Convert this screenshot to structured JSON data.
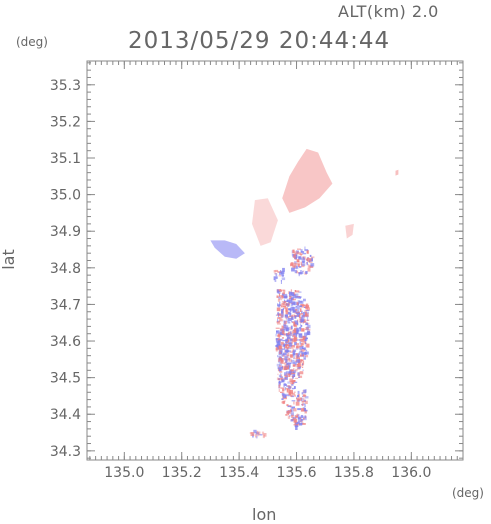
{
  "header": {
    "alt_label": "ALT(km) 2.0",
    "timestamp": "2013/05/29 20:44:44"
  },
  "chart_data": {
    "type": "heatmap",
    "title": "2013/05/29 20:44:44",
    "xlabel": "lon",
    "ylabel": "lat",
    "x_unit": "(deg)",
    "y_unit": "(deg)",
    "xlim": [
      134.87,
      136.18
    ],
    "ylim": [
      34.275,
      35.365
    ],
    "x_ticks": [
      "135.0",
      "135.2",
      "135.4",
      "135.6",
      "135.8",
      "136.0"
    ],
    "y_ticks": [
      "34.3",
      "34.4",
      "34.5",
      "34.6",
      "34.7",
      "34.8",
      "34.9",
      "35.0",
      "35.1",
      "35.2",
      "35.3"
    ],
    "grid": false,
    "colors": {
      "positive": "#f08080",
      "negative": "#8080f0",
      "axis": "#888888",
      "text": "#666666"
    },
    "regions": [
      {
        "sign": "positive",
        "intensity": 0.45,
        "points": [
          [
            135.605,
            35.09
          ],
          [
            135.635,
            35.125
          ],
          [
            135.675,
            35.115
          ],
          [
            135.705,
            35.06
          ],
          [
            135.725,
            35.03
          ],
          [
            135.68,
            34.99
          ],
          [
            135.63,
            34.965
          ],
          [
            135.575,
            34.95
          ],
          [
            135.55,
            34.99
          ],
          [
            135.575,
            35.05
          ]
        ]
      },
      {
        "sign": "positive",
        "intensity": 0.3,
        "points": [
          [
            135.455,
            34.985
          ],
          [
            135.5,
            34.99
          ],
          [
            135.535,
            34.93
          ],
          [
            135.51,
            34.87
          ],
          [
            135.475,
            34.86
          ],
          [
            135.445,
            34.92
          ]
        ]
      },
      {
        "sign": "positive",
        "intensity": 0.35,
        "points": [
          [
            135.77,
            34.915
          ],
          [
            135.8,
            34.92
          ],
          [
            135.795,
            34.89
          ],
          [
            135.775,
            34.88
          ]
        ]
      },
      {
        "sign": "positive",
        "intensity": 0.5,
        "points": [
          [
            135.945,
            35.065
          ],
          [
            135.955,
            35.068
          ],
          [
            135.955,
            35.055
          ],
          [
            135.945,
            35.052
          ]
        ]
      },
      {
        "sign": "negative",
        "intensity": 0.55,
        "points": [
          [
            135.3,
            34.875
          ],
          [
            135.35,
            34.875
          ],
          [
            135.39,
            34.865
          ],
          [
            135.42,
            34.84
          ],
          [
            135.39,
            34.825
          ],
          [
            135.35,
            34.83
          ],
          [
            135.315,
            34.855
          ]
        ]
      },
      {
        "sign": "mixed",
        "intensity": 0.6,
        "points": [
          [
            135.53,
            34.745
          ],
          [
            135.6,
            34.745
          ],
          [
            135.635,
            34.7
          ],
          [
            135.64,
            34.6
          ],
          [
            135.62,
            34.52
          ],
          [
            135.58,
            34.46
          ],
          [
            135.55,
            34.42
          ],
          [
            135.53,
            34.5
          ],
          [
            135.525,
            34.62
          ]
        ]
      },
      {
        "sign": "mixed",
        "intensity": 0.55,
        "points": [
          [
            135.58,
            34.85
          ],
          [
            135.63,
            34.86
          ],
          [
            135.66,
            34.82
          ],
          [
            135.62,
            34.78
          ],
          [
            135.57,
            34.8
          ]
        ]
      },
      {
        "sign": "mixed",
        "intensity": 0.5,
        "points": [
          [
            135.57,
            34.46
          ],
          [
            135.63,
            34.47
          ],
          [
            135.63,
            34.38
          ],
          [
            135.6,
            34.36
          ],
          [
            135.56,
            34.4
          ]
        ]
      },
      {
        "sign": "mixed",
        "intensity": 0.45,
        "points": [
          [
            135.42,
            34.355
          ],
          [
            135.47,
            34.36
          ],
          [
            135.49,
            34.345
          ],
          [
            135.45,
            34.34
          ]
        ]
      },
      {
        "sign": "mixed",
        "intensity": 0.5,
        "points": [
          [
            135.52,
            34.795
          ],
          [
            135.55,
            34.8
          ],
          [
            135.55,
            34.76
          ],
          [
            135.52,
            34.77
          ]
        ]
      }
    ]
  }
}
